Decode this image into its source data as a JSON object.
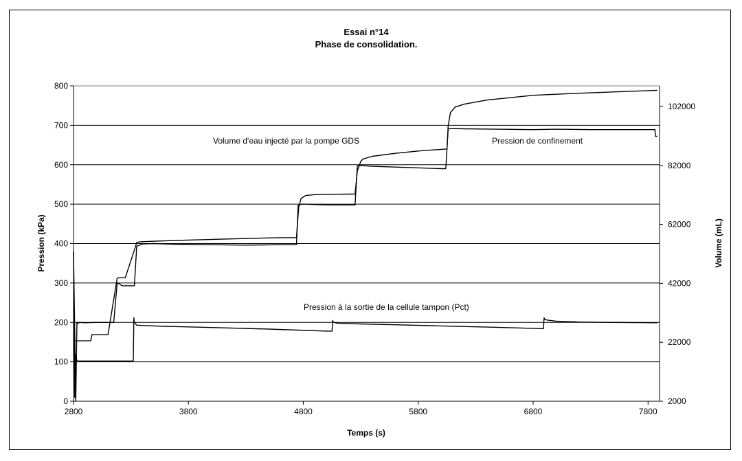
{
  "chart_data": {
    "type": "line",
    "title": "Essai n°14",
    "subtitle": "Phase de consolidation.",
    "xlabel": "Temps (s)",
    "ylabel": "Pression  (kPa)",
    "y2label": "Volume (mL)",
    "xlim": [
      2800,
      7900
    ],
    "ylim": [
      0,
      800
    ],
    "y2lim": [
      2000,
      109000
    ],
    "xticks": [
      "2800",
      "3800",
      "4800",
      "5800",
      "6800",
      "7800"
    ],
    "yticks": [
      "0",
      "100",
      "200",
      "300",
      "400",
      "500",
      "600",
      "700",
      "800"
    ],
    "y2ticks": [
      "2000",
      "22000",
      "42000",
      "62000",
      "82000",
      "102000"
    ],
    "grid": "horizontal",
    "annotations": {
      "volume": "Volume d'eau injecté par la pompe GDS",
      "confinement": "Pression de confinement",
      "pct": "Pression à la sortie de la cellule tampon (Pct)"
    },
    "series": [
      {
        "axis": "left",
        "x": [
          2800,
          2820,
          2830,
          2835,
          2850,
          2900,
          3000,
          3150,
          3180,
          3200,
          3220,
          3250,
          3330,
          3350,
          3400,
          3500,
          3700,
          4000,
          4300,
          4600,
          4740,
          4755,
          4770,
          4800,
          4900,
          5000,
          5250,
          5270,
          5300,
          5400,
          5600,
          5800,
          6000,
          6040,
          6060,
          6080,
          6200,
          6500,
          6800,
          7000,
          7300,
          7600,
          7860,
          7865,
          7880
        ],
        "y": [
          380,
          0,
          200,
          197,
          200,
          199,
          200,
          200,
          300,
          298,
          293,
          293,
          293,
          393,
          399,
          400,
          398,
          397,
          396,
          397,
          397,
          497,
          499,
          500,
          499,
          498,
          498,
          597,
          598,
          596,
          594,
          592,
          590,
          590,
          690,
          692,
          691,
          690,
          689,
          690,
          689,
          689,
          689,
          672,
          672
        ]
      },
      {
        "axis": "right",
        "x": [
          2800,
          2950,
          2960,
          3100,
          3180,
          3200,
          3250,
          3340,
          3350,
          3380,
          3500,
          3800,
          4200,
          4600,
          4740,
          4760,
          4780,
          4820,
          4900,
          5000,
          5250,
          5270,
          5300,
          5320,
          5400,
          5600,
          5800,
          6050,
          6060,
          6080,
          6120,
          6200,
          6400,
          6800,
          7200,
          7600,
          7880
        ],
        "y": [
          22500,
          22500,
          24600,
          24600,
          43800,
          43900,
          43900,
          54500,
          55900,
          56100,
          56300,
          56700,
          57100,
          57500,
          57500,
          67800,
          70800,
          71800,
          72100,
          72200,
          72300,
          80100,
          83400,
          84200,
          85100,
          86100,
          86900,
          87600,
          95400,
          99900,
          101800,
          102800,
          104200,
          105800,
          106500,
          107100,
          107500
        ]
      },
      {
        "axis": "left",
        "x": [
          2800,
          2810,
          2815,
          2820,
          2825,
          2830,
          2840,
          2860,
          2900,
          3000,
          3100,
          3320,
          3325,
          3330,
          3350,
          3400,
          3600,
          4000,
          4500,
          5000,
          5050,
          5055,
          5060,
          5080,
          5100,
          5300,
          5600,
          6000,
          6400,
          6890,
          6895,
          6900,
          6920,
          6950,
          7000,
          7200,
          7500,
          7880
        ],
        "y": [
          380,
          10,
          80,
          118,
          108,
          103,
          102,
          102,
          102,
          102,
          102,
          102,
          212,
          200,
          193,
          192,
          190,
          187,
          183,
          178,
          178,
          205,
          201,
          199,
          198,
          196,
          194,
          191,
          188,
          184,
          212,
          208,
          206,
          205,
          203,
          201,
          200,
          199
        ]
      }
    ]
  }
}
